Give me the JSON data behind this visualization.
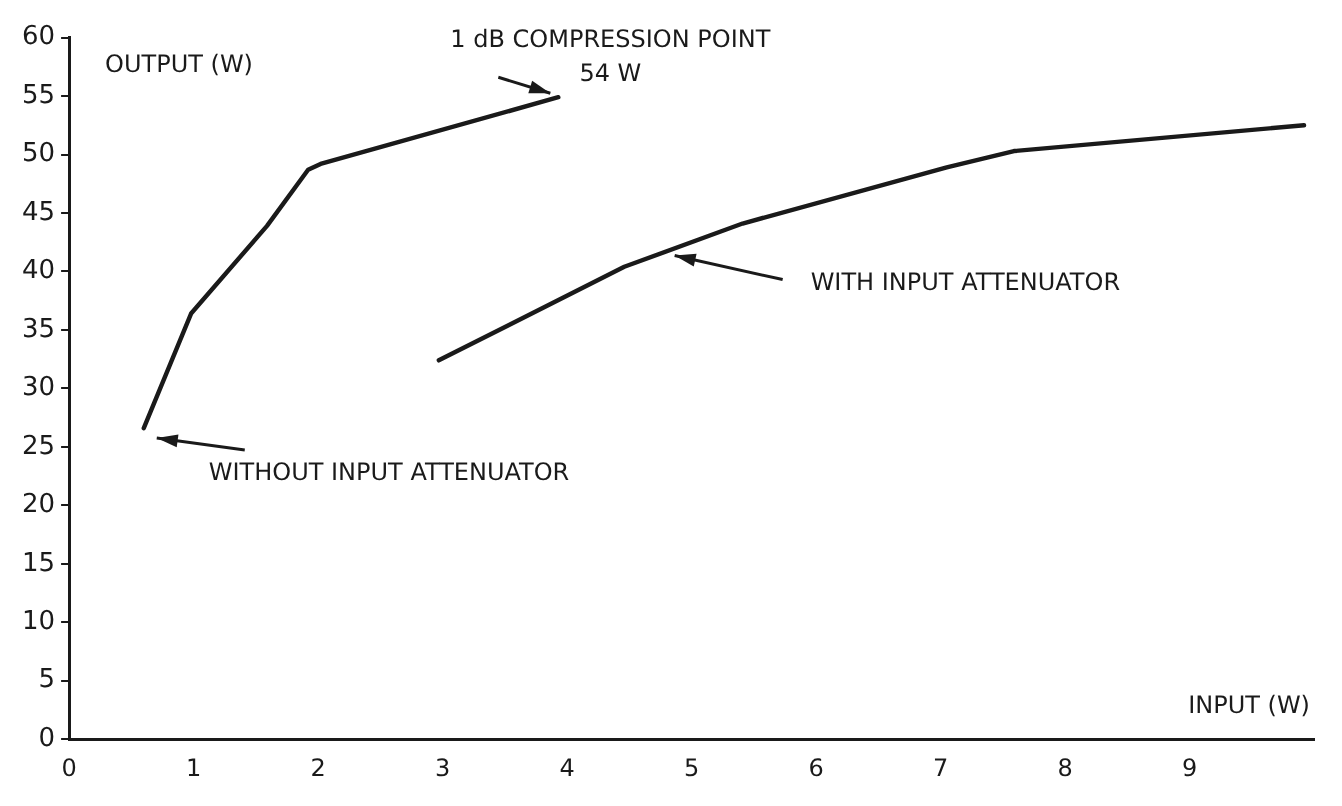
{
  "chart_data": {
    "type": "line",
    "xlabel": "INPUT (W)",
    "ylabel": "OUTPUT (W)",
    "series": [
      {
        "color": "#1a1a1a",
        "x": [
          0.6,
          0.98,
          1.59,
          1.92,
          2.02,
          3.93
        ],
        "values": [
          26.6,
          36.4,
          43.9,
          48.7,
          49.2,
          54.9
        ]
      },
      {
        "color": "#1a1a1a",
        "x": [
          2.97,
          4.46,
          5.41,
          7.05,
          7.59,
          9.92
        ],
        "values": [
          32.4,
          40.4,
          44.1,
          48.9,
          50.3,
          52.5
        ]
      }
    ],
    "xlim": [
      0,
      10
    ],
    "xticks": [
      0,
      1,
      2,
      3,
      4,
      5,
      6,
      7,
      8,
      9
    ],
    "ylim": [
      0,
      60
    ],
    "yticks": [
      0,
      5,
      10,
      15,
      20,
      25,
      30,
      35,
      40,
      45,
      50,
      55,
      60
    ],
    "annotations": [
      {
        "text": "1 dB COMPRESSION POINT\n54 W",
        "x": 3.93,
        "y": 54.9
      },
      {
        "text": "WITH INPUT ATTENUATOR",
        "x": 4.8,
        "y": 41.7
      },
      {
        "text": "WITHOUT INPUT ATTENUATOR",
        "x": 0.64,
        "y": 26.1
      }
    ],
    "grid": false,
    "legend": false,
    "marker": "none",
    "line_style": "solid"
  }
}
